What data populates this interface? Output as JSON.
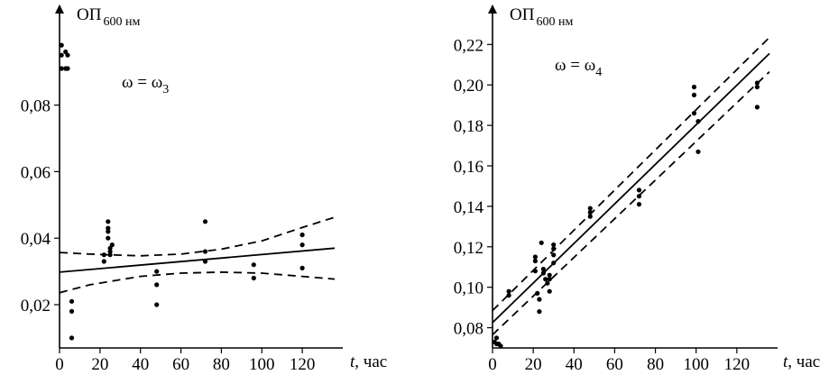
{
  "chart_data": [
    {
      "type": "scatter",
      "panel": "left",
      "ylabel_main": "ОП",
      "ylabel_sub": "600 нм",
      "xlabel_var": "t",
      "xlabel_unit": ", час",
      "annotation_main": "ω = ω",
      "annotation_sub": "3",
      "xlim": [
        0,
        140
      ],
      "ylim": [
        0.007,
        0.104
      ],
      "xticks": [
        0,
        20,
        40,
        60,
        80,
        100,
        120
      ],
      "xtick_labels": [
        "0",
        "20",
        "40",
        "60",
        "80",
        "100",
        "120"
      ],
      "yticks": [
        0.02,
        0.04,
        0.06,
        0.08
      ],
      "ytick_labels": [
        "0,02",
        "0,04",
        "0,06",
        "0,08"
      ],
      "points": [
        [
          1,
          0.098
        ],
        [
          1,
          0.095
        ],
        [
          1,
          0.091
        ],
        [
          3,
          0.096
        ],
        [
          3,
          0.091
        ],
        [
          4,
          0.095
        ],
        [
          4,
          0.091
        ],
        [
          6,
          0.021
        ],
        [
          6,
          0.018
        ],
        [
          6,
          0.01
        ],
        [
          22,
          0.035
        ],
        [
          22,
          0.033
        ],
        [
          24,
          0.045
        ],
        [
          24,
          0.043
        ],
        [
          24,
          0.042
        ],
        [
          24,
          0.04
        ],
        [
          25,
          0.037
        ],
        [
          25,
          0.036
        ],
        [
          25,
          0.035
        ],
        [
          26,
          0.038
        ],
        [
          48,
          0.03
        ],
        [
          48,
          0.026
        ],
        [
          48,
          0.02
        ],
        [
          72,
          0.045
        ],
        [
          72,
          0.036
        ],
        [
          72,
          0.033
        ],
        [
          96,
          0.032
        ],
        [
          96,
          0.028
        ],
        [
          120,
          0.041
        ],
        [
          120,
          0.038
        ],
        [
          120,
          0.031
        ]
      ],
      "fit_line": {
        "x": [
          0,
          136
        ],
        "y": [
          0.0298,
          0.037
        ]
      },
      "confidence_upper": {
        "x": [
          0,
          15,
          40,
          60,
          80,
          100,
          120,
          136
        ],
        "y": [
          0.0357,
          0.0352,
          0.0347,
          0.0352,
          0.0367,
          0.0392,
          0.0432,
          0.0463
        ]
      },
      "confidence_lower": {
        "x": [
          0,
          15,
          40,
          60,
          80,
          100,
          120,
          136
        ],
        "y": [
          0.0236,
          0.026,
          0.0285,
          0.0295,
          0.0298,
          0.0295,
          0.0285,
          0.0277
        ]
      }
    },
    {
      "type": "scatter",
      "panel": "right",
      "ylabel_main": "ОП",
      "ylabel_sub": "600 нм",
      "xlabel_var": "t",
      "xlabel_unit": ", час",
      "annotation_main": "ω = ω",
      "annotation_sub": "4",
      "xlim": [
        0,
        140
      ],
      "ylim": [
        0.07,
        0.2295
      ],
      "xticks": [
        0,
        20,
        40,
        60,
        80,
        100,
        120
      ],
      "xtick_labels": [
        "0",
        "20",
        "40",
        "60",
        "80",
        "100",
        "120"
      ],
      "yticks": [
        0.08,
        0.1,
        0.12,
        0.14,
        0.16,
        0.18,
        0.2,
        0.22
      ],
      "ytick_labels": [
        "0,08",
        "0,10",
        "0,12",
        "0,14",
        "0,16",
        "0,18",
        "0,20",
        "0,22"
      ],
      "points": [
        [
          1,
          0.073
        ],
        [
          2,
          0.075
        ],
        [
          2,
          0.072
        ],
        [
          3,
          0.072
        ],
        [
          4,
          0.071
        ],
        [
          8,
          0.098
        ],
        [
          8,
          0.096
        ],
        [
          21,
          0.115
        ],
        [
          21,
          0.113
        ],
        [
          21,
          0.108
        ],
        [
          22,
          0.097
        ],
        [
          23,
          0.094
        ],
        [
          23,
          0.088
        ],
        [
          24,
          0.122
        ],
        [
          25,
          0.109
        ],
        [
          25,
          0.107
        ],
        [
          26,
          0.104
        ],
        [
          27,
          0.102
        ],
        [
          28,
          0.106
        ],
        [
          28,
          0.104
        ],
        [
          28,
          0.098
        ],
        [
          30,
          0.121
        ],
        [
          30,
          0.119
        ],
        [
          30,
          0.116
        ],
        [
          30,
          0.112
        ],
        [
          48,
          0.139
        ],
        [
          48,
          0.137
        ],
        [
          48,
          0.135
        ],
        [
          72,
          0.148
        ],
        [
          72,
          0.145
        ],
        [
          72,
          0.141
        ],
        [
          99,
          0.199
        ],
        [
          99,
          0.195
        ],
        [
          99,
          0.186
        ],
        [
          101,
          0.182
        ],
        [
          101,
          0.167
        ],
        [
          130,
          0.201
        ],
        [
          130,
          0.199
        ],
        [
          130,
          0.189
        ]
      ],
      "fit_line": {
        "x": [
          0,
          136
        ],
        "y": [
          0.0825,
          0.2155
        ]
      },
      "confidence_upper": {
        "x": [
          0,
          136
        ],
        "y": [
          0.0885,
          0.2235
        ]
      },
      "confidence_lower": {
        "x": [
          0,
          136
        ],
        "y": [
          0.0765,
          0.2065
        ]
      }
    }
  ]
}
